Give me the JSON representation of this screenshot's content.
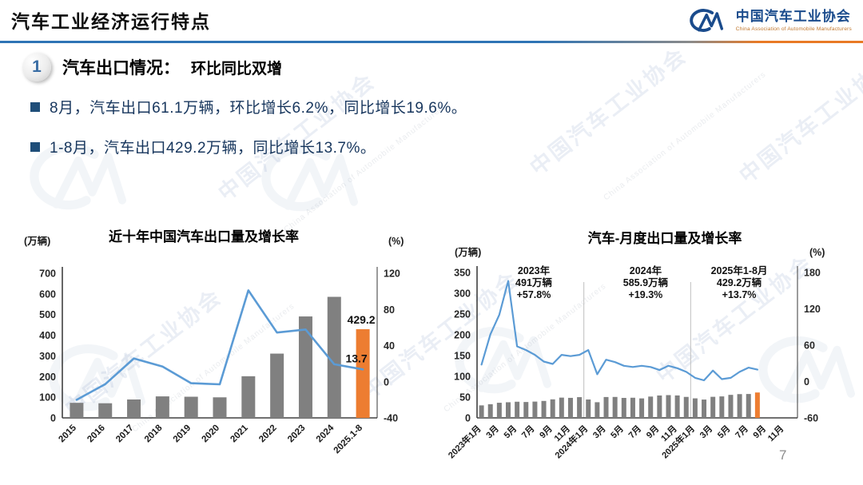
{
  "header": {
    "title": "汽车工业经济运行特点",
    "page_number": "7"
  },
  "logo": {
    "name_cn": "中国汽车工业协会",
    "name_en": "China Association of Automobile Manufacturers"
  },
  "section": {
    "number": "1",
    "title": "汽车出口情况：",
    "subtitle": "环比同比双增"
  },
  "bullets": [
    "8月，汽车出口61.1万辆，环比增长6.2%，同比增长19.6%。",
    "1-8月，汽车出口429.2万辆，同比增长13.7%。"
  ],
  "watermark": {
    "text": "中国汽车工业协会",
    "subtext": "China Association of Automobile Manufacturers"
  },
  "colors": {
    "bar": "#808080",
    "highlight": "#ED7D31",
    "line": "#5B9BD5",
    "axis": "#404040",
    "separator": "#bfbfbf",
    "bullet_text": "#17365D",
    "accent_blue": "#2E74B5",
    "accent_orange": "#E97A25",
    "logo_blue": "#1a4b8c"
  },
  "chart_data": [
    {
      "type": "bar+line",
      "title": "近十年中国汽车出口量及增长率",
      "left_axis_label": "(万辆)",
      "right_axis_label": "(%)",
      "left_ylim": [
        0,
        700
      ],
      "right_ylim": [
        -40,
        120
      ],
      "left_ticks": [
        700,
        600,
        500,
        400,
        300,
        200,
        100,
        0
      ],
      "right_ticks": [
        120,
        80,
        40,
        0,
        -40
      ],
      "categories": [
        "2015",
        "2016",
        "2017",
        "2018",
        "2019",
        "2020",
        "2021",
        "2022",
        "2023",
        "2024",
        "2025.1-8"
      ],
      "series": [
        {
          "name": "出口量(万辆)",
          "kind": "bar",
          "values": [
            72.8,
            70.8,
            89.1,
            104.1,
            102.4,
            99.5,
            201.5,
            311.1,
            491.0,
            585.9,
            429.2
          ]
        },
        {
          "name": "增长率(%)",
          "kind": "line",
          "values": [
            -20.0,
            -2.7,
            25.8,
            16.8,
            -1.6,
            -2.9,
            101.1,
            54.4,
            57.8,
            19.3,
            13.7
          ]
        }
      ],
      "highlight_index": 10,
      "bar_label": {
        "index": 10,
        "text": "429.2"
      },
      "line_label": {
        "index": 10,
        "text": "13.7"
      },
      "grid": false,
      "legend": "none"
    },
    {
      "type": "bar+line",
      "title": "汽车-月度出口量及增长率",
      "left_axis_label": "(万辆)",
      "right_axis_label": "(%)",
      "left_ylim": [
        0,
        350
      ],
      "right_ylim": [
        -60,
        180
      ],
      "left_ticks": [
        350,
        300,
        250,
        200,
        150,
        100,
        50,
        0
      ],
      "right_ticks": [
        180,
        120,
        60,
        0,
        -60
      ],
      "slot_count": 36,
      "x_tick_step": 2,
      "x_tick_labels": [
        "2023年1月",
        "3月",
        "5月",
        "7月",
        "9月",
        "11月",
        "2024年1月",
        "3月",
        "5月",
        "7月",
        "9月",
        "11月",
        "2025年1月",
        "3月",
        "5月",
        "7月",
        "9月",
        "11月"
      ],
      "series": [
        {
          "name": "出口量(万辆)",
          "kind": "bar",
          "values": [
            30.1,
            32.9,
            36.4,
            37.6,
            38.9,
            38.2,
            39.2,
            40.8,
            44.6,
            48.8,
            48.2,
            49.9,
            44.3,
            37.7,
            50.2,
            50.4,
            48.1,
            48.5,
            46.9,
            51.3,
            53.9,
            54.8,
            54.0,
            50.5,
            47.0,
            44.1,
            50.7,
            51.7,
            55.4,
            57.2,
            57.5,
            61.1
          ]
        },
        {
          "name": "增长率(%)",
          "kind": "line",
          "values": [
            28,
            78,
            110,
            166,
            58,
            52,
            44,
            33,
            29,
            44,
            42,
            44,
            52,
            12,
            36,
            32,
            26,
            24,
            26,
            24,
            19,
            26,
            22,
            16,
            6,
            2,
            18,
            4,
            6,
            16,
            23,
            19.6
          ]
        }
      ],
      "highlight_index": 31,
      "year_separator_slots": [
        12,
        24
      ],
      "annotations": [
        {
          "x_frac": 0.177,
          "lines": [
            "2023年",
            "491万辆",
            "+57.8%"
          ]
        },
        {
          "x_frac": 0.526,
          "lines": [
            "2024年",
            "585.9万辆",
            "+19.3%"
          ]
        },
        {
          "x_frac": 0.818,
          "lines": [
            "2025年1-8月",
            "429.2万辆",
            "+13.7%"
          ]
        }
      ],
      "grid": false,
      "legend": "none"
    }
  ]
}
